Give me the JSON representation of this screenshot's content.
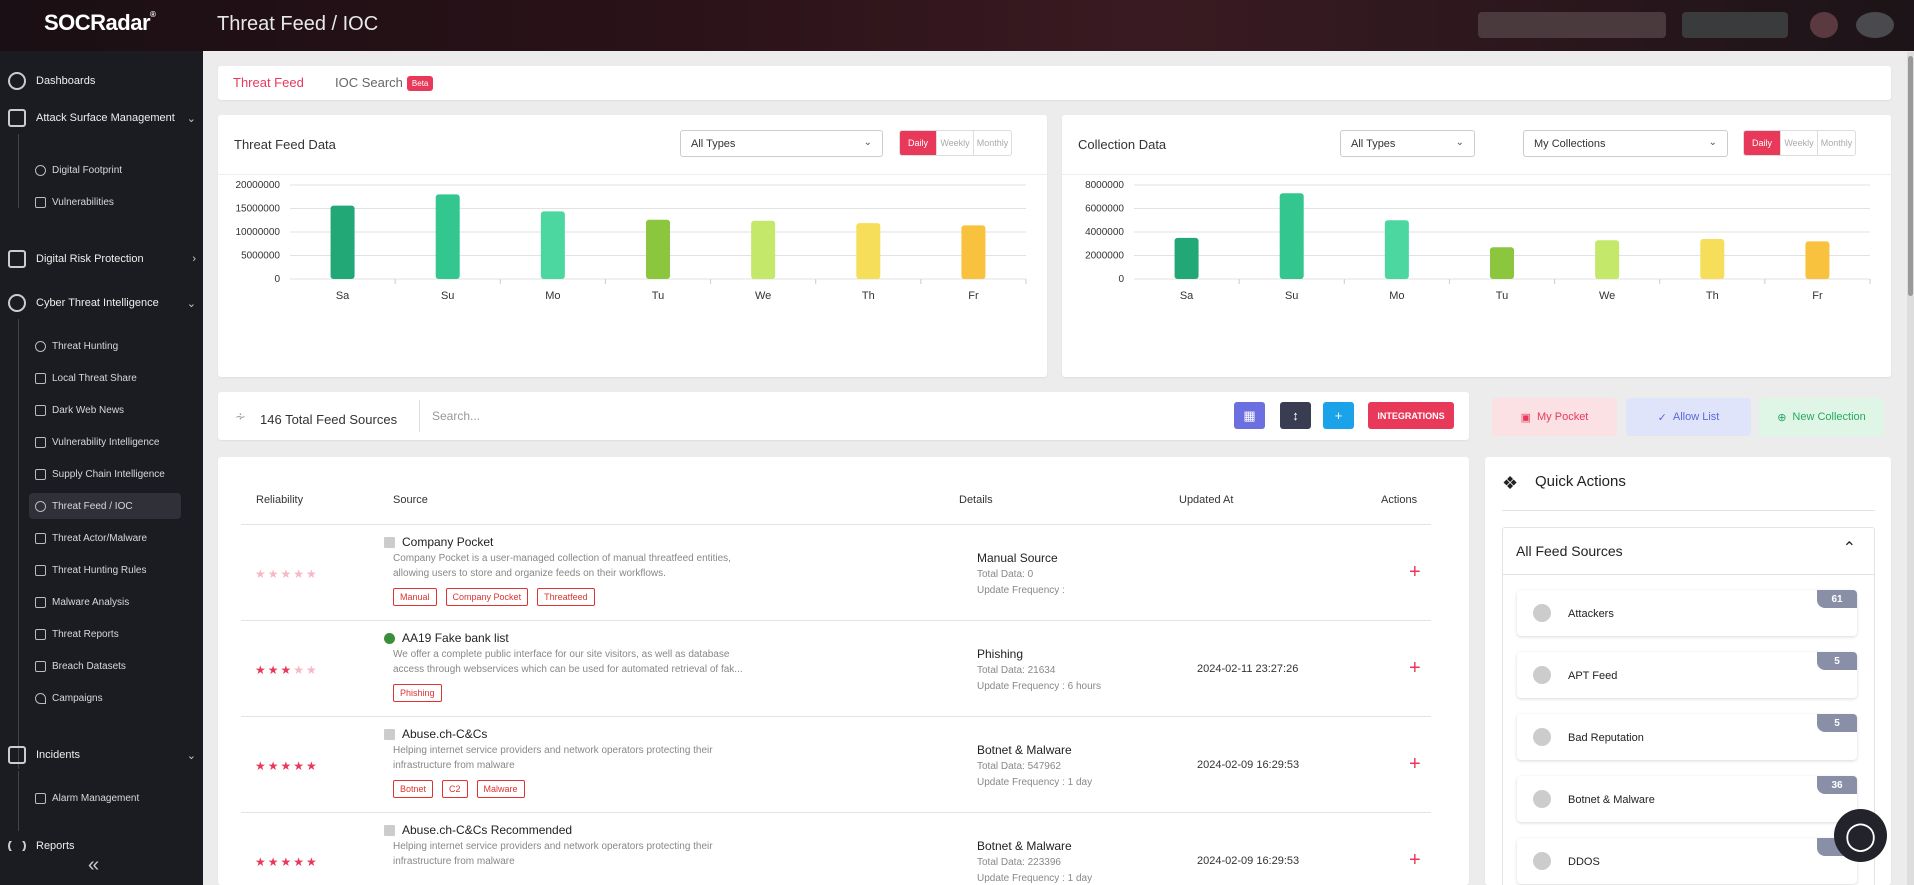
{
  "topbar": {
    "logo": "SOCRadar",
    "logo_mark": "®",
    "page_title": "Threat Feed / IOC"
  },
  "sidebar": {
    "items": [
      {
        "label": "Dashboards",
        "icon": "dashboard-icon",
        "expandable": false
      },
      {
        "label": "Attack Surface Management",
        "icon": "asm-icon",
        "expandable": true,
        "expanded": true
      },
      {
        "label": "Digital Risk Protection",
        "icon": "drp-icon",
        "expandable": true,
        "expanded": false
      },
      {
        "label": "Cyber Threat Intelligence",
        "icon": "cti-icon",
        "expandable": true,
        "expanded": true
      },
      {
        "label": "Incidents",
        "icon": "incidents-icon",
        "expandable": true,
        "expanded": true
      },
      {
        "label": "Reports",
        "icon": "reports-icon",
        "expandable": false
      }
    ],
    "asm_sub": [
      "Digital Footprint",
      "Vulnerabilities"
    ],
    "cti_sub": [
      "Threat Hunting",
      "Local Threat Share",
      "Dark Web News",
      "Vulnerability Intelligence",
      "Supply Chain Intelligence",
      "Threat Feed / IOC",
      "Threat Actor/Malware",
      "Threat Hunting Rules",
      "Malware Analysis",
      "Threat Reports",
      "Breach Datasets",
      "Campaigns"
    ],
    "cti_active": "Threat Feed / IOC",
    "incidents_sub": [
      "Alarm Management"
    ],
    "collapse_icon": "double-chevron-left-icon"
  },
  "tabs": {
    "threat_feed": "Threat Feed",
    "ioc_search": "IOC Search",
    "beta": "Beta",
    "active": "Threat Feed"
  },
  "threat_panel": {
    "title": "Threat Feed Data",
    "type_select": "All Types",
    "periods": [
      "Daily",
      "Weekly",
      "Monthly"
    ],
    "period_active": "Daily"
  },
  "collection_panel": {
    "title": "Collection Data",
    "type_select": "All Types",
    "collection_select": "My Collections",
    "periods": [
      "Daily",
      "Weekly",
      "Monthly"
    ],
    "period_active": "Daily"
  },
  "chart_data": [
    {
      "type": "bar",
      "title": "Threat Feed Data",
      "categories": [
        "Sa",
        "Su",
        "Mo",
        "Tu",
        "We",
        "Th",
        "Fr"
      ],
      "values": [
        15600000,
        18000000,
        14400000,
        12600000,
        12400000,
        11900000,
        11400000
      ],
      "yticks": [
        "20000000",
        "15000000",
        "10000000",
        "5000000",
        "0"
      ],
      "ylim": [
        0,
        20000000
      ],
      "grid": true,
      "colors": [
        "#22a776",
        "#33c78f",
        "#4cd6a0",
        "#8cc63f",
        "#c4e86a",
        "#f6de5a",
        "#f8c23e"
      ]
    },
    {
      "type": "bar",
      "title": "Collection Data",
      "categories": [
        "Sa",
        "Su",
        "Mo",
        "Tu",
        "We",
        "Th",
        "Fr"
      ],
      "values": [
        3500000,
        7300000,
        5000000,
        2700000,
        3300000,
        3400000,
        3200000
      ],
      "yticks": [
        "8000000",
        "6000000",
        "4000000",
        "2000000",
        "0"
      ],
      "ylim": [
        0,
        8000000
      ],
      "grid": true,
      "colors": [
        "#22a776",
        "#33c78f",
        "#4cd6a0",
        "#8cc63f",
        "#c4e86a",
        "#f6de5a",
        "#f8c23e"
      ]
    }
  ],
  "feed_bar": {
    "total": "146 Total Feed Sources",
    "search_placeholder": "Search...",
    "integrations": "INTEGRATIONS"
  },
  "pocket_buttons": {
    "my_pocket": "My Pocket",
    "allow_list": "Allow List",
    "new_collection": "New Collection"
  },
  "table": {
    "headers": {
      "reliability": "Reliability",
      "source": "Source",
      "details": "Details",
      "updated": "Updated At",
      "actions": "Actions"
    },
    "rows": [
      {
        "rating": 5,
        "title": "Company Pocket",
        "desc": "Company Pocket is a user-managed collection of manual threatfeed entities, allowing users to store and organize feeds on their workflows.",
        "tags": [
          "Manual",
          "Company Pocket",
          "Threatfeed"
        ],
        "category": "Manual Source",
        "total": "Total Data: 0",
        "freq": "Update Frequency :",
        "updated": ""
      },
      {
        "rating": 3,
        "title": "AA19 Fake bank list",
        "desc": "We offer a complete public interface for our site visitors, as well as database access through webservices which can be used for automated retrieval of fak...",
        "tags": [
          "Phishing"
        ],
        "category": "Phishing",
        "total": "Total Data: 21634",
        "freq": "Update Frequency : 6 hours",
        "updated": "2024-02-11 23:27:26"
      },
      {
        "rating": 5,
        "title": "Abuse.ch-C&Cs",
        "desc": "Helping internet service providers and network operators protecting their infrastructure from malware",
        "tags": [
          "Botnet",
          "C2",
          "Malware"
        ],
        "category": "Botnet & Malware",
        "total": "Total Data: 547962",
        "freq": "Update Frequency : 1 day",
        "updated": "2024-02-09 16:29:53"
      },
      {
        "rating": 5,
        "title": "Abuse.ch-C&Cs Recommended",
        "desc": "Helping internet service providers and network operators protecting their infrastructure from malware",
        "tags": [],
        "category": "Botnet & Malware",
        "total": "Total Data: 223396",
        "freq": "Update Frequency : 1 day",
        "updated": "2024-02-09 16:29:53"
      }
    ]
  },
  "quick_actions": {
    "title": "Quick Actions",
    "all_feed_sources": "All Feed Sources",
    "items": [
      {
        "label": "Attackers",
        "count": "61",
        "icon": "hacker-icon"
      },
      {
        "label": "APT Feed",
        "count": "5",
        "icon": "shield-icon"
      },
      {
        "label": "Bad Reputation",
        "count": "5",
        "icon": "target-icon"
      },
      {
        "label": "Botnet & Malware",
        "count": "36",
        "icon": "robot-icon"
      },
      {
        "label": "DDOS",
        "count": "",
        "icon": "ddos-icon"
      }
    ]
  }
}
